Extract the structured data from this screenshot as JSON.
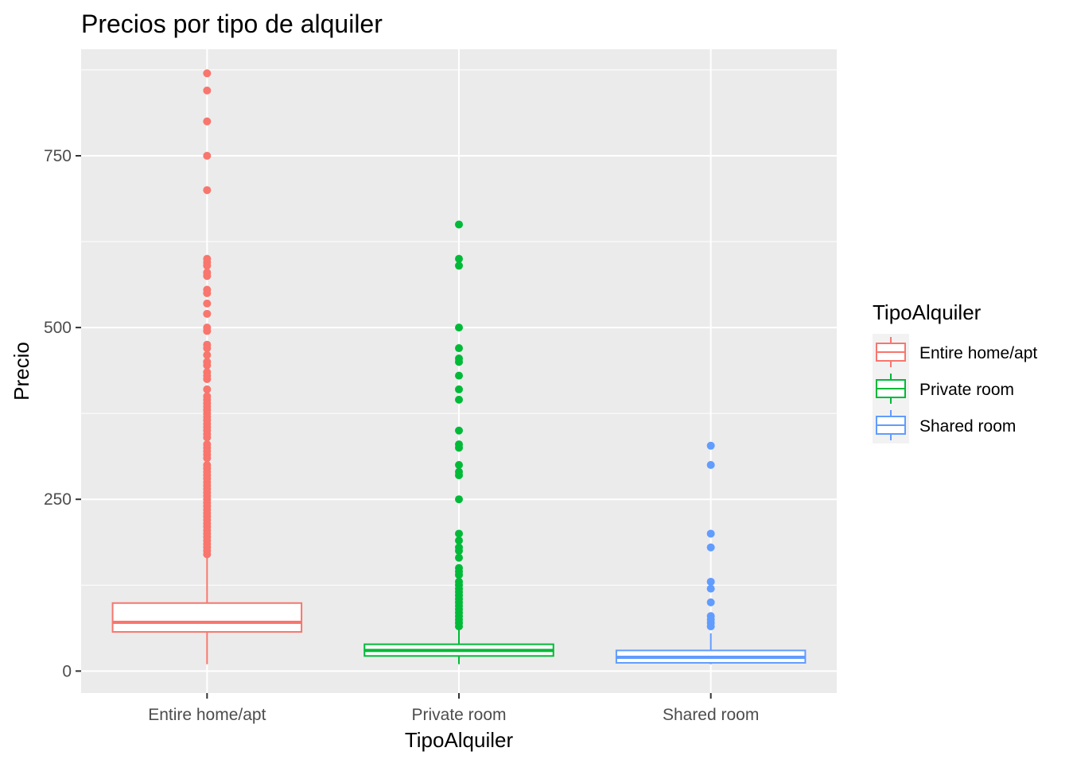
{
  "chart_data": {
    "type": "boxplot",
    "title": "Precios por tipo de alquiler",
    "xlabel": "TipoAlquiler",
    "ylabel": "Precio",
    "ylim": [
      -32,
      905
    ],
    "yticks": [
      0,
      250,
      500,
      750
    ],
    "categories": [
      "Entire home/apt",
      "Private room",
      "Shared room"
    ],
    "grid": true,
    "legend": {
      "title": "TipoAlquiler",
      "position": "right"
    },
    "series": [
      {
        "name": "Entire home/apt",
        "color": "#F8766D",
        "min": 10,
        "q1": 57,
        "median": 71,
        "q3": 99,
        "max": 165,
        "outliers": [
          870,
          845,
          800,
          750,
          700,
          600,
          595,
          590,
          580,
          575,
          555,
          550,
          535,
          520,
          500,
          495,
          475,
          470,
          460,
          450,
          445,
          435,
          430,
          425,
          410,
          400,
          395,
          390,
          385,
          380,
          375,
          370,
          365,
          360,
          355,
          350,
          345,
          340,
          330,
          325,
          320,
          315,
          310,
          300,
          295,
          290,
          285,
          280,
          275,
          270,
          265,
          260,
          255,
          250,
          245,
          240,
          235,
          230,
          225,
          220,
          215,
          210,
          205,
          200,
          195,
          190,
          185,
          180,
          175,
          170
        ]
      },
      {
        "name": "Private room",
        "color": "#00BA38",
        "min": 10,
        "q1": 22,
        "median": 30,
        "q3": 39,
        "max": 63,
        "outliers": [
          650,
          600,
          590,
          500,
          470,
          455,
          450,
          430,
          410,
          395,
          350,
          330,
          325,
          300,
          290,
          285,
          250,
          200,
          190,
          180,
          175,
          165,
          150,
          145,
          140,
          130,
          125,
          120,
          115,
          110,
          105,
          100,
          95,
          90,
          85,
          80,
          75,
          70,
          65
        ]
      },
      {
        "name": "Shared room",
        "color": "#619CFF",
        "min": 10,
        "q1": 12,
        "median": 20,
        "q3": 30,
        "max": 55,
        "outliers": [
          328,
          300,
          200,
          180,
          130,
          120,
          100,
          80,
          75,
          70,
          65
        ]
      }
    ]
  }
}
